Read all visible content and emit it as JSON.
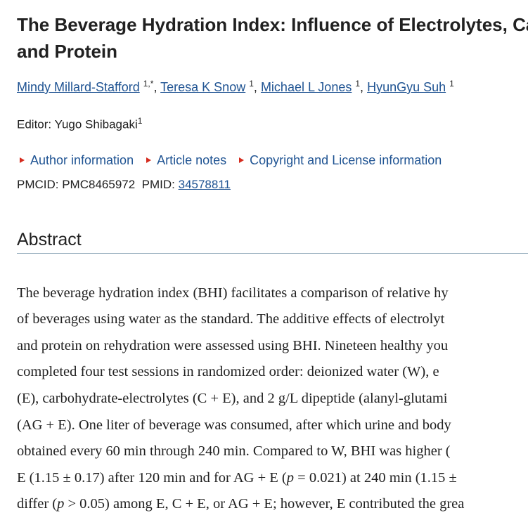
{
  "header": {
    "title_lines": [
      "The Beverage Hydration Index: Influence of Electrolytes, Ca",
      "and Protein"
    ],
    "authors": [
      {
        "name": "Mindy Millard-Stafford",
        "sup": "1,*"
      },
      {
        "name": "Teresa K Snow",
        "sup": "1"
      },
      {
        "name": "Michael L Jones",
        "sup": "1"
      },
      {
        "name": "HyunGyu Suh",
        "sup": "1"
      }
    ],
    "separator": ",",
    "editor": {
      "label": "Editor:",
      "name": "Yugo Shibagaki",
      "sup": "1"
    },
    "links": [
      "Author information",
      "Article notes",
      "Copyright and License information"
    ],
    "ids": {
      "pmcid": "PMCID: PMC8465972",
      "pmid_label": "PMID:",
      "pmid": "34578811"
    }
  },
  "abstract": {
    "heading": "Abstract",
    "lines": [
      [
        {
          "text": "The beverage hydration index (BHI) facilitates a comparison of relative hy"
        }
      ],
      [
        {
          "text": "of beverages using water as the standard. The additive effects of electrolyt"
        }
      ],
      [
        {
          "text": "and protein on rehydration were assessed using BHI. Nineteen healthy you"
        }
      ],
      [
        {
          "text": "completed four test sessions in randomized order: deionized water (W), e"
        }
      ],
      [
        {
          "text": "(E), carbohydrate-electrolytes (C + E), and 2 g/L dipeptide (alanyl-glutami"
        }
      ],
      [
        {
          "text": "(AG + E). One liter of beverage was consumed, after which urine and body"
        }
      ],
      [
        {
          "text": "obtained every 60 min through 240 min. Compared to W, BHI was higher ("
        }
      ],
      [
        {
          "text": "E (1.15 ± 0.17) after 120 min and for AG + E ("
        },
        {
          "text": "p",
          "italic": true
        },
        {
          "text": " = 0.021) at 240 min (1.15 ±"
        }
      ],
      [
        {
          "text": "differ ("
        },
        {
          "text": "p",
          "italic": true
        },
        {
          "text": " > 0.05) among E, C + E, or AG + E; however, E contributed the grea"
        }
      ]
    ]
  }
}
